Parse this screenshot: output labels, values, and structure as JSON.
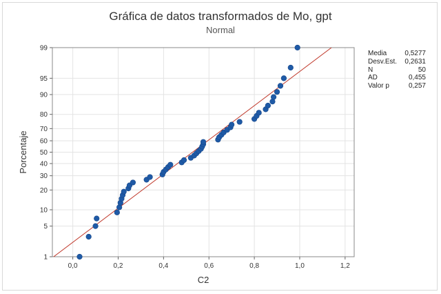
{
  "chart_data": {
    "type": "scatter",
    "title": "Gráfica de datos transformados de Mo, gpt",
    "subtitle": "Normal",
    "xlabel": "C2",
    "ylabel": "Porcentaje",
    "x_ticks": [
      0.0,
      0.2,
      0.4,
      0.6,
      0.8,
      1.0,
      1.2
    ],
    "x_tick_labels": [
      "0,0",
      "0,2",
      "0,4",
      "0,6",
      "0,8",
      "1,0",
      "1,2"
    ],
    "xlim": [
      -0.09,
      1.24
    ],
    "y_scale": "normal-probability",
    "y_ticks": [
      1,
      5,
      10,
      20,
      30,
      40,
      50,
      60,
      70,
      80,
      90,
      95,
      99
    ],
    "y_tick_labels": [
      "1",
      "5",
      "10",
      "20",
      "30",
      "40",
      "50",
      "60",
      "70",
      "80",
      "90",
      "95",
      "99"
    ],
    "ylim_percent": [
      1,
      99
    ],
    "grid": true,
    "fit_line": {
      "mean": 0.5277,
      "sd": 0.2631,
      "color": "#c0392b"
    },
    "marker_color": "#1f5aa6",
    "series": [
      {
        "x": [
          0.03,
          0.07,
          0.1,
          0.105,
          0.195,
          0.205,
          0.21,
          0.215,
          0.22,
          0.225,
          0.245,
          0.25,
          0.265,
          0.325,
          0.34,
          0.395,
          0.4,
          0.41,
          0.42,
          0.43,
          0.48,
          0.49,
          0.52,
          0.535,
          0.545,
          0.555,
          0.565,
          0.57,
          0.575,
          0.575,
          0.64,
          0.645,
          0.655,
          0.665,
          0.68,
          0.695,
          0.7,
          0.735,
          0.8,
          0.81,
          0.82,
          0.85,
          0.86,
          0.88,
          0.885,
          0.9,
          0.915,
          0.93,
          0.96,
          0.99
        ],
        "y": [
          1,
          3,
          5,
          7,
          9,
          11,
          13,
          15,
          17,
          19,
          21,
          23,
          25,
          27,
          29,
          31,
          33,
          35,
          37,
          39,
          41,
          43,
          45,
          47,
          49,
          51,
          53,
          55,
          57,
          59,
          61,
          63,
          65,
          67,
          69,
          71,
          73,
          75,
          77,
          79,
          81,
          83,
          85,
          87,
          89,
          91,
          93,
          95,
          97,
          99
        ]
      }
    ]
  },
  "stats": [
    {
      "label": "Media",
      "value": "0,5277"
    },
    {
      "label": "Desv.Est.",
      "value": "0,2631"
    },
    {
      "label": "N",
      "value": "50"
    },
    {
      "label": "AD",
      "value": "0,455"
    },
    {
      "label": "Valor p",
      "value": "0,257"
    }
  ]
}
